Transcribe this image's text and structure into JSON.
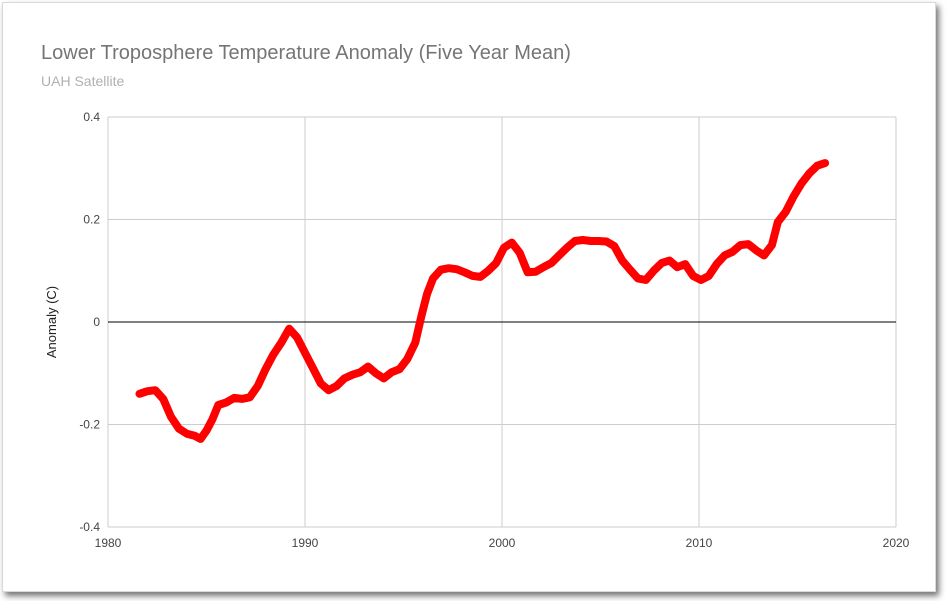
{
  "chart_data": {
    "type": "line",
    "title": "Lower Troposphere Temperature Anomaly (Five Year Mean)",
    "subtitle": "UAH Satellite",
    "xlabel": "",
    "ylabel": "Anomaly (C)",
    "xlim": [
      1980,
      2020
    ],
    "ylim": [
      -0.4,
      0.4
    ],
    "x_ticks": [
      "1980",
      "1990",
      "2000",
      "2010",
      "2020"
    ],
    "y_ticks": [
      "0.4",
      "0.2",
      "0",
      "-0.2",
      "-0.4"
    ],
    "grid": true,
    "legend": "none",
    "colors": {
      "line": "#ff0000",
      "zero_line": "#000000",
      "grid": "#cccccc"
    },
    "series": [
      {
        "points": [
          [
            1981.6,
            -0.14
          ],
          [
            1982.0,
            -0.135
          ],
          [
            1982.4,
            -0.133
          ],
          [
            1982.8,
            -0.15
          ],
          [
            1983.2,
            -0.185
          ],
          [
            1983.6,
            -0.208
          ],
          [
            1984.0,
            -0.218
          ],
          [
            1984.4,
            -0.222
          ],
          [
            1984.7,
            -0.228
          ],
          [
            1985.0,
            -0.212
          ],
          [
            1985.3,
            -0.19
          ],
          [
            1985.6,
            -0.162
          ],
          [
            1986.0,
            -0.157
          ],
          [
            1986.4,
            -0.148
          ],
          [
            1986.8,
            -0.15
          ],
          [
            1987.2,
            -0.147
          ],
          [
            1987.6,
            -0.125
          ],
          [
            1988.0,
            -0.092
          ],
          [
            1988.4,
            -0.063
          ],
          [
            1988.8,
            -0.04
          ],
          [
            1989.2,
            -0.013
          ],
          [
            1989.6,
            -0.03
          ],
          [
            1990.0,
            -0.06
          ],
          [
            1990.4,
            -0.09
          ],
          [
            1990.8,
            -0.12
          ],
          [
            1991.2,
            -0.133
          ],
          [
            1991.6,
            -0.125
          ],
          [
            1992.0,
            -0.11
          ],
          [
            1992.4,
            -0.103
          ],
          [
            1992.8,
            -0.098
          ],
          [
            1993.2,
            -0.087
          ],
          [
            1993.6,
            -0.1
          ],
          [
            1994.0,
            -0.11
          ],
          [
            1994.4,
            -0.098
          ],
          [
            1994.8,
            -0.092
          ],
          [
            1995.2,
            -0.072
          ],
          [
            1995.6,
            -0.04
          ],
          [
            1995.9,
            0.01
          ],
          [
            1996.2,
            0.055
          ],
          [
            1996.5,
            0.085
          ],
          [
            1996.9,
            0.102
          ],
          [
            1997.3,
            0.105
          ],
          [
            1997.7,
            0.103
          ],
          [
            1998.1,
            0.097
          ],
          [
            1998.5,
            0.09
          ],
          [
            1998.9,
            0.088
          ],
          [
            1999.3,
            0.1
          ],
          [
            1999.7,
            0.115
          ],
          [
            2000.1,
            0.145
          ],
          [
            2000.5,
            0.155
          ],
          [
            2000.9,
            0.135
          ],
          [
            2001.3,
            0.097
          ],
          [
            2001.7,
            0.098
          ],
          [
            2002.1,
            0.107
          ],
          [
            2002.5,
            0.115
          ],
          [
            2002.9,
            0.13
          ],
          [
            2003.3,
            0.145
          ],
          [
            2003.7,
            0.158
          ],
          [
            2004.1,
            0.16
          ],
          [
            2004.5,
            0.158
          ],
          [
            2004.9,
            0.158
          ],
          [
            2005.3,
            0.157
          ],
          [
            2005.7,
            0.148
          ],
          [
            2006.1,
            0.12
          ],
          [
            2006.5,
            0.102
          ],
          [
            2006.9,
            0.085
          ],
          [
            2007.3,
            0.082
          ],
          [
            2007.7,
            0.1
          ],
          [
            2008.1,
            0.115
          ],
          [
            2008.5,
            0.12
          ],
          [
            2008.9,
            0.107
          ],
          [
            2009.3,
            0.113
          ],
          [
            2009.7,
            0.09
          ],
          [
            2010.1,
            0.082
          ],
          [
            2010.5,
            0.09
          ],
          [
            2010.9,
            0.113
          ],
          [
            2011.3,
            0.13
          ],
          [
            2011.7,
            0.137
          ],
          [
            2012.1,
            0.15
          ],
          [
            2012.5,
            0.152
          ],
          [
            2012.9,
            0.14
          ],
          [
            2013.3,
            0.13
          ],
          [
            2013.7,
            0.15
          ],
          [
            2014.0,
            0.195
          ],
          [
            2014.4,
            0.215
          ],
          [
            2014.8,
            0.245
          ],
          [
            2015.2,
            0.27
          ],
          [
            2015.6,
            0.29
          ],
          [
            2016.0,
            0.305
          ],
          [
            2016.4,
            0.31
          ]
        ]
      }
    ]
  }
}
